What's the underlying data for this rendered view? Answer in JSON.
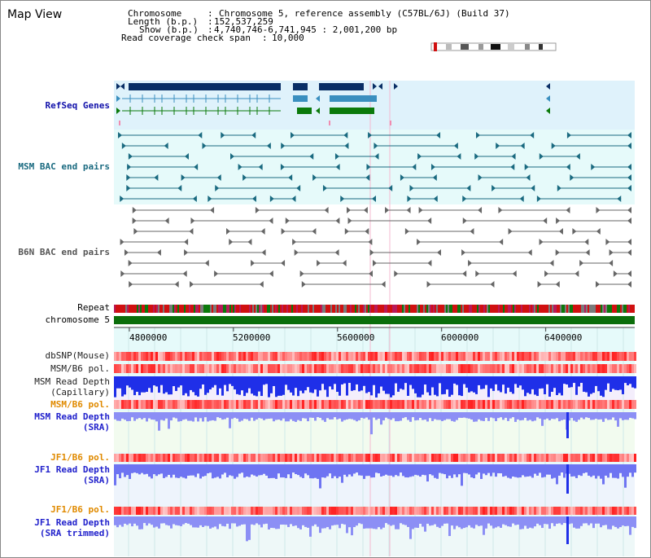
{
  "title": "Map View",
  "info": {
    "chromosome_key": "Chromosome",
    "chromosome_val": "Chromosome 5, reference assembly (C57BL/6J) (Build 37)",
    "length_key": "Length (b.p.)",
    "length_val": "152,537,259",
    "show_key": "Show (b.p.)",
    "show_val": "4,740,746-6,741,945 : 2,001,200 bp",
    "coverage_key": "Read coverage check span",
    "coverage_val": "10,000",
    "sep": ":"
  },
  "tracks": {
    "refseq": "RefSeq Genes",
    "msm_bac": "MSM BAC end pairs",
    "b6n_bac": "B6N BAC end pairs",
    "repeat": "Repeat",
    "chromosome": "chromosome 5",
    "dbsnp": "dbSNP(Mouse)",
    "msm_b6_pol_1": "MSM/B6 pol.",
    "msm_depth_cap_1": "MSM Read Depth",
    "msm_depth_cap_2": "(Capillary)",
    "msm_b6_pol_2": "MSM/B6 pol.",
    "msm_depth_sra_1": "MSM Read Depth",
    "msm_depth_sra_2": "(SRA)",
    "jf1_b6_pol_1": "JF1/B6 pol.",
    "jf1_depth_sra_1": "JF1 Read Depth",
    "jf1_depth_sra_2": "(SRA)",
    "jf1_b6_pol_2": "JF1/B6 pol.",
    "jf1_depth_trim_1": "JF1 Read Depth",
    "jf1_depth_trim_2": "(SRA trimmed)"
  },
  "axis": {
    "ticks": [
      "4800000",
      "5200000",
      "5600000",
      "6000000",
      "6400000"
    ]
  },
  "colors": {
    "refseq_bg": "#dff2fb",
    "bac_bg": "#e6fafa",
    "axis_bg": "#e6fafa",
    "gene_dark": "#0a2f66",
    "gene_mid": "#3a8fbf",
    "gene_green": "#0b7a0b",
    "bac_teal": "#1a6a80",
    "chrom_green": "#0b6e0b",
    "depth_blue": "#1f2fe8",
    "depth_light": "#8c8ff5"
  }
}
